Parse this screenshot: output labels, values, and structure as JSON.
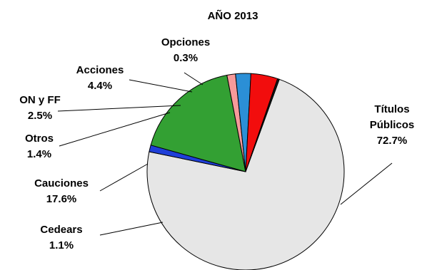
{
  "chart_data": {
    "type": "pie",
    "title": "AÑO 2013",
    "slices": [
      {
        "name": "Títulos Públicos",
        "value": 72.7,
        "label": "72.7%",
        "color": "#e6e6e6"
      },
      {
        "name": "Cedears",
        "value": 1.1,
        "label": "1.1%",
        "color": "#1f3fd8"
      },
      {
        "name": "Cauciones",
        "value": 17.6,
        "label": "17.6%",
        "color": "#33a033"
      },
      {
        "name": "Otros",
        "value": 1.4,
        "label": "1.4%",
        "color": "#f79a9a"
      },
      {
        "name": "ON y FF",
        "value": 2.5,
        "label": "2.5%",
        "color": "#2b8fd6"
      },
      {
        "name": "Acciones",
        "value": 4.4,
        "label": "4.4%",
        "color": "#f20d0d"
      },
      {
        "name": "Opciones",
        "value": 0.3,
        "label": "0.3%",
        "color": "#1a1a1a"
      }
    ]
  }
}
